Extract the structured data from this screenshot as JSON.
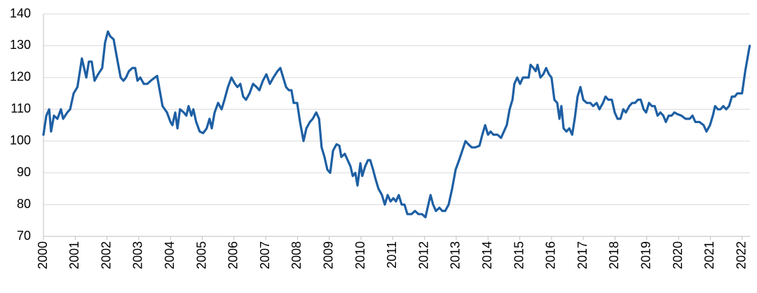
{
  "chart_data": {
    "type": "line",
    "color": "#1d5fa3",
    "grid": true,
    "xlim": [
      2000,
      2022.25
    ],
    "xticks": [
      2000,
      2001,
      2002,
      2003,
      2004,
      2005,
      2006,
      2007,
      2008,
      2009,
      2010,
      2011,
      2012,
      2013,
      2014,
      2015,
      2016,
      2017,
      2018,
      2019,
      2020,
      2021,
      2022
    ],
    "ylim": [
      70,
      140
    ],
    "yticks": [
      70,
      80,
      90,
      100,
      110,
      120,
      130,
      140
    ],
    "x": [
      2000.0,
      2000.09,
      2000.18,
      2000.24,
      2000.33,
      2000.44,
      2000.55,
      2000.62,
      2000.75,
      2000.84,
      2000.95,
      2001.07,
      2001.21,
      2001.35,
      2001.43,
      2001.52,
      2001.61,
      2001.72,
      2001.85,
      2001.94,
      2002.03,
      2002.1,
      2002.21,
      2002.3,
      2002.43,
      2002.52,
      2002.6,
      2002.69,
      2002.8,
      2002.89,
      2002.96,
      2003.05,
      2003.16,
      2003.27,
      2003.38,
      2003.51,
      2003.58,
      2003.66,
      2003.75,
      2003.89,
      2004.0,
      2004.06,
      2004.15,
      2004.22,
      2004.3,
      2004.42,
      2004.5,
      2004.57,
      2004.66,
      2004.72,
      2004.81,
      2004.92,
      2005.03,
      2005.14,
      2005.23,
      2005.3,
      2005.39,
      2005.5,
      2005.61,
      2005.7,
      2005.81,
      2005.92,
      2006.03,
      2006.11,
      2006.2,
      2006.29,
      2006.38,
      2006.49,
      2006.6,
      2006.71,
      2006.8,
      2006.91,
      2007.02,
      2007.13,
      2007.24,
      2007.37,
      2007.46,
      2007.55,
      2007.64,
      2007.73,
      2007.81,
      2007.88,
      2007.99,
      2008.08,
      2008.19,
      2008.28,
      2008.39,
      2008.48,
      2008.59,
      2008.68,
      2008.76,
      2008.85,
      2008.94,
      2009.03,
      2009.12,
      2009.23,
      2009.32,
      2009.38,
      2009.49,
      2009.58,
      2009.67,
      2009.74,
      2009.82,
      2009.89,
      2009.98,
      2010.04,
      2010.13,
      2010.22,
      2010.29,
      2010.38,
      2010.46,
      2010.55,
      2010.66,
      2010.75,
      2010.84,
      2010.93,
      2011.02,
      2011.1,
      2011.19,
      2011.28,
      2011.37,
      2011.46,
      2011.59,
      2011.7,
      2011.81,
      2011.92,
      2012.03,
      2012.12,
      2012.19,
      2012.27,
      2012.36,
      2012.47,
      2012.56,
      2012.65,
      2012.76,
      2012.87,
      2012.98,
      2013.09,
      2013.19,
      2013.29,
      2013.38,
      2013.49,
      2013.6,
      2013.73,
      2013.82,
      2013.91,
      2014.0,
      2014.08,
      2014.17,
      2014.3,
      2014.41,
      2014.5,
      2014.59,
      2014.68,
      2014.77,
      2014.83,
      2014.92,
      2015.01,
      2015.1,
      2015.19,
      2015.28,
      2015.34,
      2015.43,
      2015.5,
      2015.56,
      2015.65,
      2015.74,
      2015.83,
      2015.92,
      2016.0,
      2016.09,
      2016.18,
      2016.25,
      2016.31,
      2016.38,
      2016.47,
      2016.56,
      2016.65,
      2016.73,
      2016.82,
      2016.91,
      2017.0,
      2017.11,
      2017.22,
      2017.31,
      2017.42,
      2017.51,
      2017.62,
      2017.7,
      2017.79,
      2017.9,
      2017.99,
      2018.08,
      2018.17,
      2018.26,
      2018.34,
      2018.45,
      2018.54,
      2018.63,
      2018.72,
      2018.81,
      2018.9,
      2018.98,
      2019.07,
      2019.16,
      2019.25,
      2019.34,
      2019.43,
      2019.52,
      2019.6,
      2019.69,
      2019.78,
      2019.87,
      2019.96,
      2020.09,
      2020.22,
      2020.35,
      2020.44,
      2020.53,
      2020.66,
      2020.79,
      2020.88,
      2020.99,
      2021.08,
      2021.15,
      2021.24,
      2021.32,
      2021.41,
      2021.5,
      2021.59,
      2021.68,
      2021.77,
      2021.85,
      2022.0,
      2022.1,
      2022.24
    ],
    "values": [
      102,
      108,
      110,
      103,
      108,
      107,
      110,
      107,
      109,
      110,
      115,
      117,
      126,
      120,
      125,
      125,
      119,
      121,
      123,
      131,
      134.5,
      133,
      132,
      127,
      120,
      119,
      120,
      122,
      123,
      123,
      119,
      120,
      118,
      118,
      119,
      120,
      120.5,
      116,
      111,
      109,
      106,
      105,
      109,
      104,
      110,
      109,
      108,
      111,
      108,
      110,
      106,
      103,
      102.5,
      104,
      107,
      104,
      109,
      112,
      110,
      113,
      117,
      120,
      118,
      117,
      118,
      114,
      113,
      115,
      118,
      117,
      116,
      119,
      121,
      118,
      120,
      122,
      123,
      120,
      117,
      116,
      116,
      112,
      112,
      106,
      100,
      104,
      106,
      107,
      109,
      107,
      98,
      95,
      91,
      90,
      97,
      99,
      98.5,
      95,
      96,
      94,
      92,
      89,
      90,
      86,
      93,
      89,
      92,
      94,
      94,
      91,
      88,
      85,
      83,
      80,
      83,
      81,
      82,
      81,
      83,
      80,
      80,
      77,
      77,
      78,
      77,
      77,
      76,
      80,
      83,
      80,
      78,
      79,
      78,
      78,
      80,
      85,
      91,
      94,
      97,
      100,
      99,
      98,
      98,
      98.5,
      102,
      105,
      102,
      103,
      102,
      102,
      101,
      103,
      105,
      110,
      113,
      118,
      120,
      118,
      120,
      120,
      120,
      124,
      123,
      122,
      124,
      120,
      121,
      123,
      121,
      120,
      113,
      112,
      107,
      111,
      104,
      103,
      104,
      102,
      107,
      114,
      117,
      113,
      112,
      112,
      111,
      112,
      110,
      112,
      114,
      113,
      113,
      109,
      107,
      107,
      110,
      109,
      111,
      112,
      112,
      113,
      113,
      110,
      109,
      112,
      111,
      111,
      108,
      109,
      108,
      106,
      108,
      108,
      109,
      108.5,
      108,
      107,
      107,
      108,
      106,
      106,
      105,
      103,
      105,
      108,
      111,
      110,
      110,
      111,
      110,
      111,
      114,
      114,
      115,
      115,
      122,
      130
    ]
  }
}
